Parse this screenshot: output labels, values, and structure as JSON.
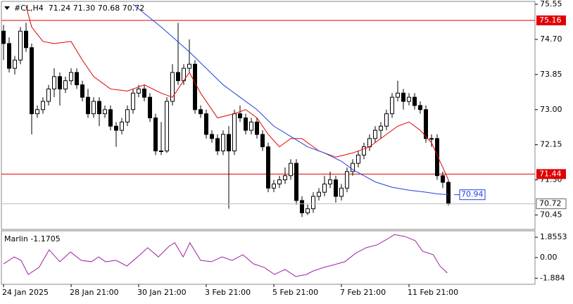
{
  "chart_data": [
    {
      "type": "candlestick",
      "title": "#CL,H4  71.24 71.30 70.68 70.72",
      "xlim": [
        -0.375,
        94.375
      ],
      "ylim": [
        70.1,
        75.62
      ],
      "yticks": [
        {
          "value": 75.55,
          "label": "75.55"
        },
        {
          "value": 74.7,
          "label": "74.70"
        },
        {
          "value": 73.85,
          "label": "73.85"
        },
        {
          "value": 73,
          "label": "73.00"
        },
        {
          "value": 72.15,
          "label": "72.15"
        },
        {
          "value": 71.3,
          "label": "71.30"
        },
        {
          "value": 70.45,
          "label": "70.45"
        }
      ],
      "up_color": "#ffffff",
      "down_color": "#000000",
      "ohlc": [
        [
          74.9,
          75.05,
          74.2,
          74.6
        ],
        [
          74.6,
          74.75,
          73.9,
          74.0
        ],
        [
          74.0,
          74.3,
          73.85,
          74.2
        ],
        [
          74.2,
          75.0,
          74.1,
          74.9
        ],
        [
          74.9,
          75.1,
          74.4,
          74.5
        ],
        [
          74.5,
          74.6,
          72.4,
          72.9
        ],
        [
          72.9,
          73.1,
          72.8,
          73.0
        ],
        [
          73.0,
          73.3,
          72.9,
          73.2
        ],
        [
          73.2,
          73.6,
          73.1,
          73.5
        ],
        [
          73.5,
          74.0,
          73.3,
          73.8
        ],
        [
          73.8,
          73.9,
          73.1,
          73.5
        ],
        [
          73.5,
          73.8,
          73.4,
          73.7
        ],
        [
          73.7,
          74.0,
          73.6,
          73.9
        ],
        [
          73.9,
          74.0,
          73.5,
          73.6
        ],
        [
          73.6,
          73.7,
          73.2,
          73.3
        ],
        [
          73.3,
          73.5,
          72.8,
          72.9
        ],
        [
          72.9,
          73.3,
          72.8,
          73.2
        ],
        [
          73.2,
          73.3,
          72.6,
          72.9
        ],
        [
          72.9,
          73.1,
          72.8,
          73.0
        ],
        [
          73.0,
          73.1,
          72.5,
          72.6
        ],
        [
          72.6,
          72.7,
          72.1,
          72.5
        ],
        [
          72.5,
          72.8,
          72.4,
          72.7
        ],
        [
          72.7,
          73.1,
          72.6,
          73.0
        ],
        [
          73.0,
          73.5,
          72.9,
          73.4
        ],
        [
          73.4,
          73.6,
          73.3,
          73.5
        ],
        [
          73.5,
          73.6,
          73.2,
          73.3
        ],
        [
          73.3,
          73.4,
          72.7,
          72.8
        ],
        [
          72.8,
          72.9,
          71.9,
          72.0
        ],
        [
          72.0,
          72.7,
          71.9,
          72.0
        ],
        [
          72.0,
          73.3,
          71.95,
          73.2
        ],
        [
          73.2,
          74.1,
          73.1,
          73.9
        ],
        [
          73.9,
          75.1,
          73.6,
          73.7
        ],
        [
          73.7,
          74.1,
          73.6,
          74.0
        ],
        [
          74.0,
          74.7,
          73.9,
          74.1
        ],
        [
          74.1,
          74.2,
          72.9,
          73.0
        ],
        [
          73.0,
          73.1,
          72.8,
          72.9
        ],
        [
          72.9,
          73.0,
          72.3,
          72.4
        ],
        [
          72.4,
          72.5,
          72.2,
          72.3
        ],
        [
          72.3,
          72.4,
          71.9,
          72.0
        ],
        [
          72.0,
          72.5,
          71.9,
          72.4
        ],
        [
          72.4,
          72.6,
          70.6,
          72.0
        ],
        [
          72.0,
          73.0,
          71.9,
          72.9
        ],
        [
          72.9,
          73.1,
          72.7,
          72.8
        ],
        [
          72.8,
          72.9,
          72.4,
          72.5
        ],
        [
          72.5,
          72.8,
          72.4,
          72.7
        ],
        [
          72.7,
          72.8,
          72.3,
          72.4
        ],
        [
          72.4,
          72.5,
          72.0,
          72.1
        ],
        [
          72.1,
          72.2,
          71.0,
          71.1
        ],
        [
          71.1,
          71.3,
          71.0,
          71.2
        ],
        [
          71.2,
          71.4,
          71.1,
          71.3
        ],
        [
          71.3,
          71.6,
          71.2,
          71.4
        ],
        [
          71.4,
          71.8,
          71.3,
          71.7
        ],
        [
          71.7,
          71.8,
          70.7,
          70.8
        ],
        [
          70.8,
          70.9,
          70.4,
          70.5
        ],
        [
          70.5,
          70.7,
          70.45,
          70.6
        ],
        [
          70.6,
          71.0,
          70.5,
          70.9
        ],
        [
          70.9,
          71.1,
          70.8,
          71.0
        ],
        [
          71.0,
          71.4,
          70.9,
          71.2
        ],
        [
          71.2,
          71.5,
          71.1,
          71.3
        ],
        [
          71.3,
          71.4,
          70.75,
          70.9
        ],
        [
          70.9,
          71.2,
          70.8,
          71.1
        ],
        [
          71.1,
          71.6,
          71.0,
          71.5
        ],
        [
          71.5,
          71.8,
          71.4,
          71.7
        ],
        [
          71.7,
          72.0,
          71.6,
          71.9
        ],
        [
          71.9,
          72.2,
          71.8,
          72.1
        ],
        [
          72.1,
          72.4,
          72.0,
          72.3
        ],
        [
          72.3,
          72.6,
          72.2,
          72.5
        ],
        [
          72.5,
          72.7,
          72.3,
          72.6
        ],
        [
          72.6,
          73.0,
          72.5,
          72.9
        ],
        [
          72.9,
          73.4,
          72.8,
          73.3
        ],
        [
          73.3,
          73.7,
          73.2,
          73.4
        ],
        [
          73.4,
          73.5,
          73.0,
          73.2
        ],
        [
          73.2,
          73.4,
          73.1,
          73.3
        ],
        [
          73.3,
          73.4,
          73.0,
          73.1
        ],
        [
          73.1,
          73.2,
          72.9,
          73.0
        ],
        [
          73.0,
          73.1,
          72.2,
          72.3
        ],
        [
          72.3,
          72.4,
          72.1,
          72.3
        ],
        [
          72.3,
          72.4,
          71.3,
          71.4
        ],
        [
          71.4,
          71.5,
          71.1,
          71.24
        ],
        [
          71.24,
          71.3,
          70.68,
          70.72
        ]
      ],
      "series": [
        {
          "color": "#e00000",
          "x": [
            4,
            5,
            7,
            9,
            12,
            14,
            16,
            19,
            22,
            25,
            28,
            30,
            32,
            33,
            35,
            38,
            41,
            43,
            45,
            47,
            49,
            51,
            53,
            56,
            59,
            62,
            65,
            68,
            70,
            72,
            74,
            76,
            78,
            79
          ],
          "values": [
            75.5,
            75.0,
            74.65,
            74.6,
            74.65,
            74.2,
            73.8,
            73.5,
            73.45,
            73.6,
            73.4,
            73.3,
            73.7,
            73.9,
            73.4,
            72.8,
            72.9,
            73.0,
            72.8,
            72.4,
            72.1,
            72.3,
            72.3,
            72.0,
            71.85,
            71.95,
            72.1,
            72.4,
            72.6,
            72.7,
            72.5,
            72.2,
            71.6,
            71.3
          ]
        },
        {
          "color": "#1f3fdf",
          "last_label": 70.94,
          "x": [
            23,
            28,
            33,
            36,
            39,
            42,
            45,
            48,
            51,
            54,
            57,
            60,
            62,
            64,
            66,
            69,
            72,
            75,
            77,
            79
          ],
          "values": [
            75.55,
            75.0,
            74.4,
            74.0,
            73.6,
            73.3,
            73.0,
            72.6,
            72.35,
            72.1,
            71.95,
            71.75,
            71.55,
            71.4,
            71.25,
            71.12,
            71.05,
            71.0,
            70.96,
            70.94
          ]
        }
      ],
      "levels": [
        {
          "value": 75.16,
          "color": "#e00000"
        },
        {
          "value": 71.44,
          "color": "#e00000"
        }
      ],
      "current_price": 70.72
    },
    {
      "type": "line",
      "title": "Marlin -1.1705",
      "xlim": [
        -0.375,
        94.375
      ],
      "ylim": [
        -2.44,
        2.44
      ],
      "yticks": [
        1.8553,
        {
          "value": 0,
          "label": "0.00"
        },
        -1.884
      ],
      "xticks": [
        {
          "value": 0,
          "label": "24 Jan 2025"
        },
        {
          "value": 12,
          "label": "28 Jan 21:00"
        },
        {
          "value": 24,
          "label": "30 Jan 21:00"
        },
        {
          "value": 36,
          "label": "3 Feb 21:00"
        },
        {
          "value": 48,
          "label": "5 Feb 21:00"
        },
        {
          "value": 60,
          "label": "7 Feb 21:00"
        },
        {
          "value": 72,
          "label": "11 Feb 21:00"
        }
      ],
      "series": [
        {
          "color": "#a020a0",
          "x": [
            0,
            1.9,
            3.1,
            4.4,
            6.3,
            8.1,
            10,
            11.9,
            13.8,
            15.6,
            16.9,
            18.1,
            20,
            21.9,
            23.8,
            25.6,
            27.5,
            29.4,
            30.4,
            31.9,
            33.1,
            35,
            36.9,
            38.8,
            40.6,
            42.5,
            44.4,
            46.3,
            48.1,
            50,
            51.9,
            53.8,
            55,
            56.9,
            58.8,
            60.6,
            62.5,
            64.4,
            66.3,
            68.1,
            69.4,
            71.3,
            73.1,
            74.4,
            76.3,
            77.5,
            78.8
          ],
          "values": [
            -0.58,
            0.06,
            -0.26,
            -1.54,
            -0.9,
            0.71,
            -0.38,
            0.51,
            -0.26,
            -0.38,
            0.06,
            -0.38,
            -0.26,
            -0.77,
            0.06,
            0.9,
            0.06,
            1.03,
            1.35,
            0.06,
            1.35,
            -0.26,
            -0.38,
            0.06,
            -0.26,
            0.26,
            -0.58,
            -0.9,
            -1.54,
            -1.09,
            -1.73,
            -1.54,
            -1.22,
            -0.9,
            -0.64,
            -0.38,
            0.38,
            0.9,
            1.15,
            1.67,
            2.1,
            1.92,
            1.54,
            0.58,
            0.26,
            -0.77,
            -1.41
          ]
        }
      ]
    }
  ]
}
